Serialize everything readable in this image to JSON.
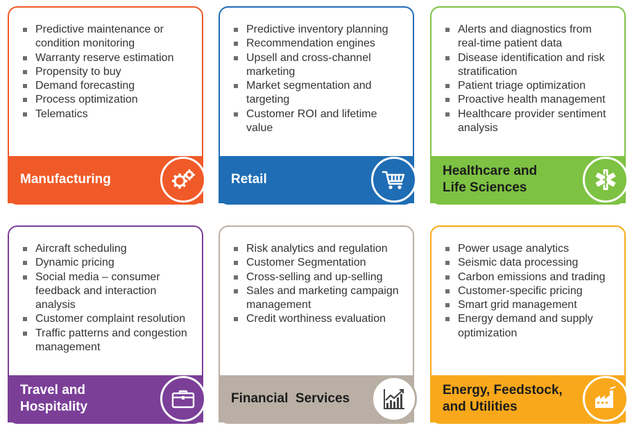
{
  "colors": {
    "manufacturing": "#f05a28",
    "retail": "#1f6db5",
    "healthcare": "#7dc242",
    "travel": "#7b3f98",
    "financial": "#b9afa4",
    "energy": "#f9a81b"
  },
  "cards": [
    {
      "label": "Manufacturing",
      "icon": "gears-icon",
      "items": [
        "Predictive maintenance or condition monitoring",
        "Warranty reserve estimation",
        "Propensity to buy",
        "Demand forecasting",
        "Process optimization",
        "Telematics"
      ]
    },
    {
      "label": "Retail",
      "icon": "shopping-cart-icon",
      "items": [
        "Predictive inventory planning",
        "Recommendation engines",
        "Upsell and cross-channel marketing",
        "Market segmentation and targeting",
        "Customer ROI and lifetime value"
      ]
    },
    {
      "label": "Healthcare and\nLife Sciences",
      "icon": "medical-star-icon",
      "items": [
        "Alerts and diagnostics from real-time patient data",
        "Disease identification and risk stratification",
        "Patient triage optimization",
        "Proactive health management",
        "Healthcare provider sentiment analysis"
      ]
    },
    {
      "label": "Travel and\nHospitality",
      "icon": "briefcase-icon",
      "items": [
        "Aircraft scheduling",
        "Dynamic pricing",
        "Social media – consumer feedback and interaction analysis",
        "Customer complaint resolution",
        "Traffic patterns and congestion management"
      ]
    },
    {
      "label": "Financial  Services",
      "icon": "growth-chart-icon",
      "items": [
        "Risk analytics and regulation",
        "Customer Segmentation",
        "Cross-selling and up-selling",
        "Sales and marketing campaign management",
        "Credit worthiness evaluation"
      ]
    },
    {
      "label": "Energy, Feedstock,\nand Utilities",
      "icon": "factory-icon",
      "items": [
        "Power usage analytics",
        "Seismic data processing",
        "Carbon emissions and trading",
        "Customer-specific pricing",
        "Smart grid management",
        "Energy demand and supply optimization"
      ]
    }
  ]
}
